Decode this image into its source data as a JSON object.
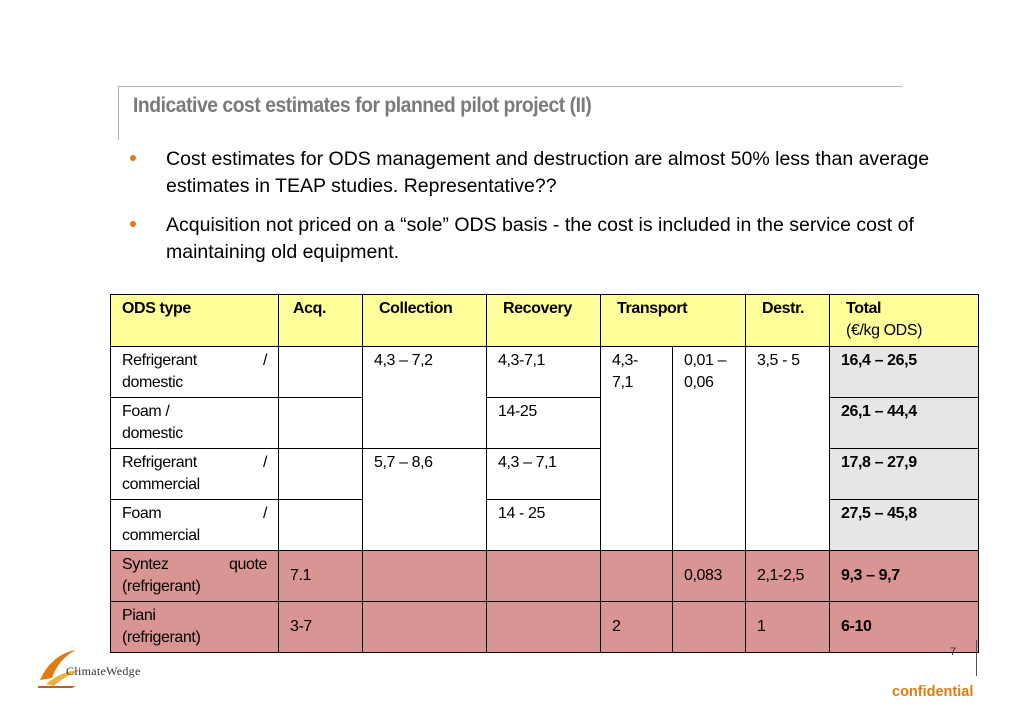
{
  "slide": {
    "title": "Indicative cost estimates for planned  pilot project (II)",
    "bullets": [
      "Cost estimates for ODS management and destruction are almost 50% less than average estimates in TEAP studies. Representative??",
      "Acquisition not priced on a “sole” ODS basis - the cost is included in the service cost of maintaining old equipment."
    ]
  },
  "table": {
    "headers": {
      "ods_type": "ODS type",
      "acq": "Acq.",
      "collection": "Collection",
      "recovery": "Recovery",
      "transport": "Transport",
      "destr": "Destr.",
      "total": "Total",
      "total_unit": "(€/kg ODS)"
    },
    "rows": {
      "refrigerant_domestic": {
        "label_a": "Refrigerant",
        "label_slash": "/",
        "label_b": "domestic",
        "recovery": "4,3-7,1",
        "total": "16,4 – 26,5"
      },
      "foam_domestic": {
        "label_a": "Foam /",
        "label_b": "domestic",
        "recovery": "14-25",
        "total": "26,1 – 44,4"
      },
      "refrigerant_commercial": {
        "label_a": "Refrigerant",
        "label_slash": "/",
        "label_b": "commercial",
        "recovery": "4,3 – 7,1",
        "total": "17,8 – 27,9"
      },
      "foam_commercial": {
        "label_a": "Foam",
        "label_slash": "/",
        "label_b": "commercial",
        "recovery": "14 - 25",
        "total": "27,5 – 45,8"
      },
      "syntez": {
        "label_a": "Syntez",
        "label_b": "quote",
        "label_c": "(refrigerant)",
        "acq": "7.1",
        "transport_b": "0,083",
        "destr": "2,1-2,5",
        "total": "9,3 – 9,7"
      },
      "piani": {
        "label_a": "Piani",
        "label_c": "(refrigerant)",
        "acq": "3-7",
        "transport_a": "2",
        "destr": "1",
        "total": "6-10"
      }
    },
    "merged": {
      "collection_domestic": "4,3 – 7,2",
      "collection_commercial": "5,7 – 8,6",
      "transport_a": "4,3-\n7,1",
      "transport_b": "0,01 –\n0,06",
      "destr": "3,5 - 5"
    }
  },
  "footer": {
    "logo_text": "ClimateWedge",
    "page_number": "7",
    "confidential": "confidential"
  },
  "colors": {
    "header_bg": "#ffff99",
    "total_bg": "#e6e6e6",
    "highlight_row_bg": "#d99594",
    "accent": "#e07b10",
    "title": "#7a7a7a"
  }
}
